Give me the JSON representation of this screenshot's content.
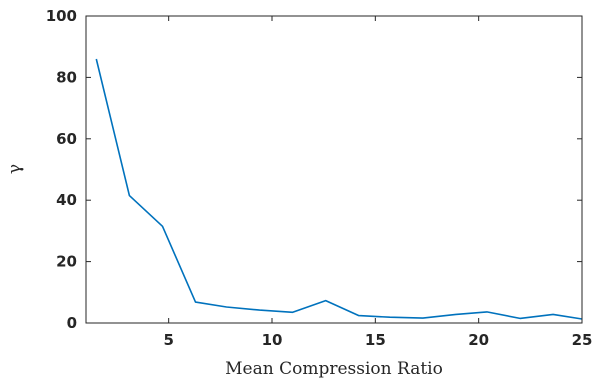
{
  "chart_data": {
    "type": "line",
    "title": "",
    "xlabel": "Mean Compression Ratio",
    "ylabel": "γ",
    "xlim": [
      1,
      25
    ],
    "ylim": [
      0,
      100
    ],
    "xticks": [
      5,
      10,
      15,
      20,
      25
    ],
    "yticks": [
      0,
      20,
      40,
      60,
      80,
      100
    ],
    "grid": false,
    "box": true,
    "series": [
      {
        "color": "#0072BD",
        "x": [
          1.5,
          3.1,
          4.7,
          6.3,
          7.8,
          9.4,
          11.0,
          12.6,
          14.2,
          15.7,
          17.3,
          18.9,
          20.4,
          22.0,
          23.6,
          25.0
        ],
        "y": [
          86.0,
          41.5,
          31.5,
          6.8,
          5.2,
          4.2,
          3.5,
          7.3,
          2.4,
          1.9,
          1.6,
          2.8,
          3.6,
          1.5,
          2.8,
          1.3
        ]
      }
    ]
  }
}
